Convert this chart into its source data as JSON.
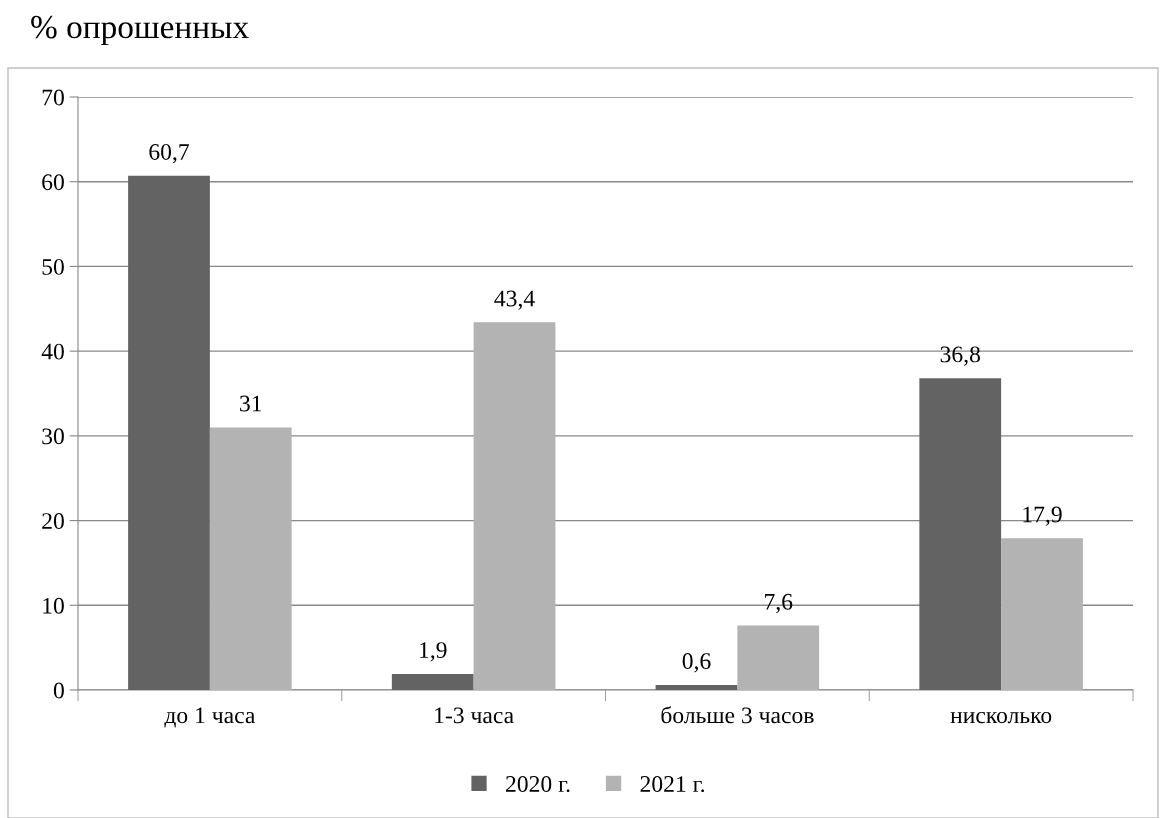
{
  "chart_data": {
    "type": "bar",
    "title": "% опрошенных",
    "categories": [
      "до 1 часа",
      "1-3 часа",
      "больше 3 часов",
      "нисколько"
    ],
    "series": [
      {
        "name": "2020 г.",
        "color": "#636363",
        "values": [
          60.7,
          1.9,
          0.6,
          36.8
        ],
        "value_labels": [
          "60,7",
          "1,9",
          "0,6",
          "36,8"
        ]
      },
      {
        "name": "2021 г.",
        "color": "#b3b3b3",
        "values": [
          31,
          43.4,
          7.6,
          17.9
        ],
        "value_labels": [
          "31",
          "43,4",
          "7,6",
          "17,9"
        ]
      }
    ],
    "ylim": [
      0,
      70
    ],
    "yticks": [
      0,
      10,
      20,
      30,
      40,
      50,
      60,
      70
    ],
    "grid": "y",
    "legend": "bottom"
  }
}
